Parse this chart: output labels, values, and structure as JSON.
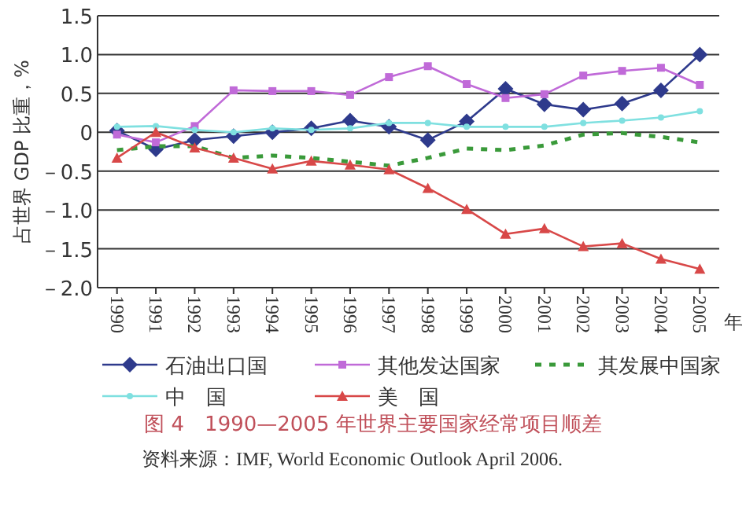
{
  "chart_data": {
    "type": "line",
    "title": "图 4　1990—2005 年世界主要国家经常项目顺差",
    "xlabel": "年",
    "ylabel": "占世界 GDP 比重，%",
    "annotations": [
      "资料来源：IMF, World Economic Outlook April 2006."
    ],
    "categories": [
      "1990",
      "1991",
      "1992",
      "1993",
      "1994",
      "1995",
      "1996",
      "1997",
      "1998",
      "1999",
      "2000",
      "2001",
      "2002",
      "2003",
      "2004",
      "2005"
    ],
    "ylim": [
      -2,
      1.5
    ],
    "yticks": [
      {
        "value": 1.5,
        "label": "1.5"
      },
      {
        "value": 1,
        "label": "1.0"
      },
      {
        "value": 0.5,
        "label": "0.5"
      },
      {
        "value": 0,
        "label": "0"
      },
      {
        "value": -0.5,
        "label": "－0.5"
      },
      {
        "value": -1,
        "label": "－1.0"
      },
      {
        "value": -1.5,
        "label": "－1.5"
      },
      {
        "value": -2,
        "label": "－2.0"
      }
    ],
    "grid": "y",
    "legend": "bottom",
    "series": [
      {
        "name": "石油出口国",
        "color": "#2e3a8c",
        "marker": "diamond",
        "line_style": "solid",
        "values": [
          0.02,
          -0.22,
          -0.1,
          -0.05,
          0.0,
          0.05,
          0.15,
          0.07,
          -0.1,
          0.14,
          0.56,
          0.36,
          0.29,
          0.37,
          0.54,
          1.0
        ]
      },
      {
        "name": "其他发达国家",
        "color": "#c06ad8",
        "marker": "square",
        "line_style": "solid",
        "values": [
          -0.03,
          -0.13,
          0.08,
          0.54,
          0.53,
          0.53,
          0.48,
          0.71,
          0.85,
          0.62,
          0.44,
          0.49,
          0.73,
          0.79,
          0.83,
          0.61
        ]
      },
      {
        "name": "其发展中国家",
        "color": "#3a9a3a",
        "marker": "none",
        "line_style": "dashed",
        "values": [
          -0.23,
          -0.18,
          -0.18,
          -0.33,
          -0.3,
          -0.33,
          -0.38,
          -0.43,
          -0.33,
          -0.21,
          -0.23,
          -0.17,
          -0.03,
          -0.01,
          -0.06,
          -0.13
        ]
      },
      {
        "name": "中　国",
        "color": "#7fe0e0",
        "marker": "circle",
        "line_style": "solid",
        "values": [
          0.07,
          0.08,
          0.03,
          0.0,
          0.05,
          0.03,
          0.05,
          0.12,
          0.12,
          0.07,
          0.07,
          0.07,
          0.12,
          0.15,
          0.19,
          0.27
        ]
      },
      {
        "name": "美　国",
        "color": "#d84848",
        "marker": "triangle",
        "line_style": "solid",
        "values": [
          -0.33,
          0.0,
          -0.2,
          -0.33,
          -0.47,
          -0.37,
          -0.42,
          -0.48,
          -0.72,
          -0.99,
          -1.31,
          -1.24,
          -1.47,
          -1.43,
          -1.63,
          -1.76
        ]
      }
    ]
  }
}
